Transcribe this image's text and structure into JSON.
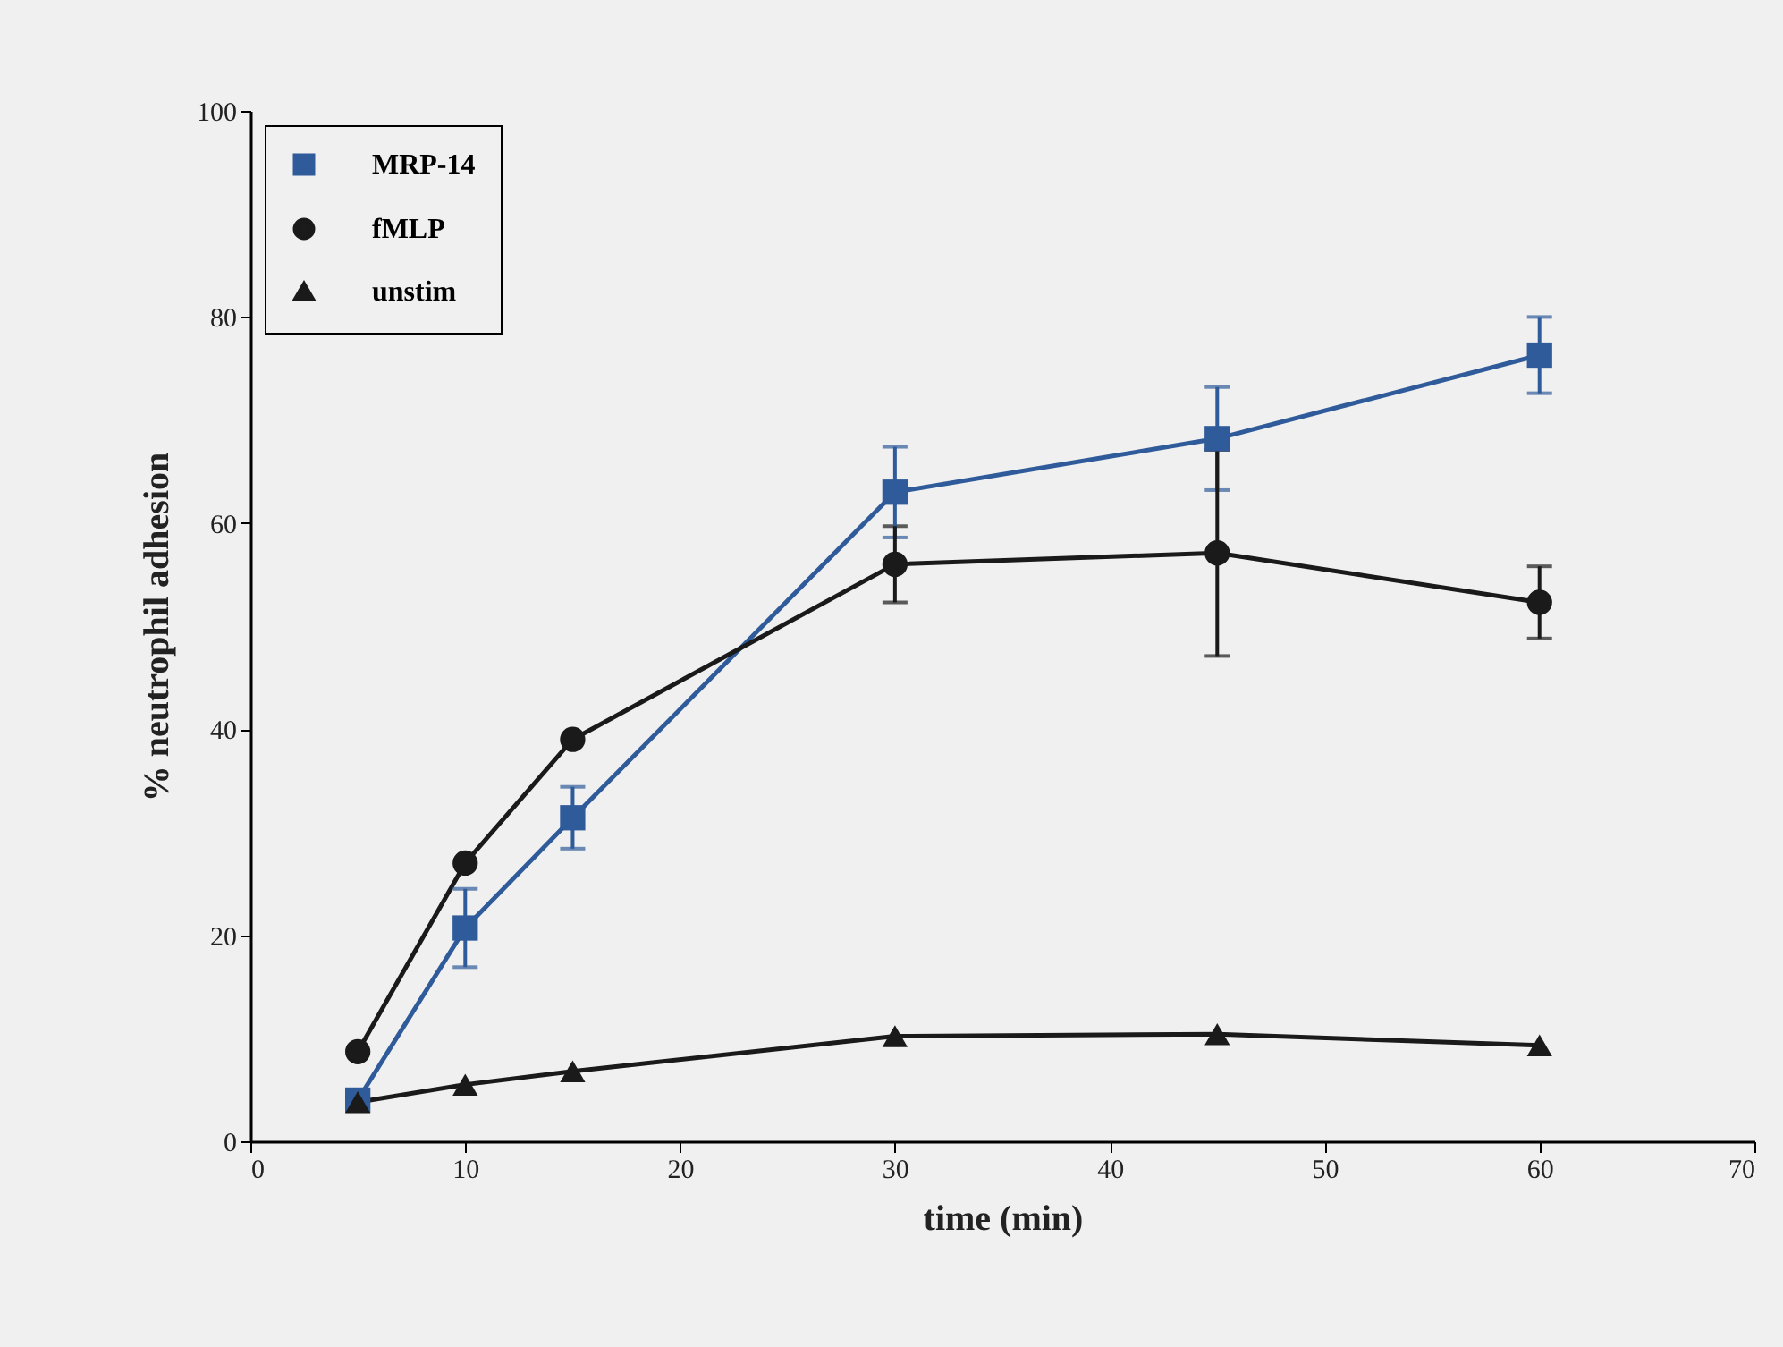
{
  "chart_data": {
    "type": "line",
    "xlabel": "time (min)",
    "ylabel": "% neutrophil adhesion",
    "x": [
      5,
      10,
      15,
      30,
      45,
      60
    ],
    "xlim": [
      0,
      70
    ],
    "xticks": [
      0,
      10,
      20,
      30,
      40,
      50,
      60,
      70
    ],
    "ylim": [
      0,
      100
    ],
    "yticks": [
      0,
      20,
      40,
      60,
      80,
      100
    ],
    "grid": false,
    "legend": "top left",
    "line_style": "solid",
    "series": [
      {
        "name": "MRP-14",
        "color": "#2f5b9a",
        "marker": "square",
        "values": [
          4.0,
          20.7,
          31.4,
          63.0,
          68.2,
          76.3
        ],
        "errors": [
          null,
          3.8,
          3.0,
          4.4,
          5.0,
          3.7
        ]
      },
      {
        "name": "fMLP",
        "color": "#1a1a1a",
        "marker": "circle",
        "values": [
          8.7,
          27.0,
          39.0,
          56.0,
          57.1,
          52.3
        ],
        "errors": [
          null,
          null,
          null,
          3.7,
          10.0,
          3.5
        ]
      },
      {
        "name": "unstim",
        "color": "#1a1a1a",
        "marker": "triangle",
        "values": [
          3.8,
          5.5,
          6.8,
          10.2,
          10.4,
          9.3
        ]
      }
    ]
  }
}
